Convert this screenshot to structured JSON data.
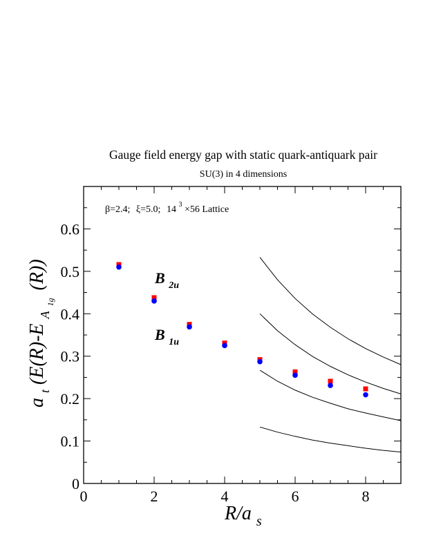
{
  "chart_data": {
    "type": "scatter",
    "title": "Gauge field energy gap with static quark-antiquark pair",
    "subtitle": "SU(3) in 4 dimensions",
    "annotation": {
      "beta": "β=2.4;",
      "xi": "ξ=5.0;",
      "lattice_base": "14",
      "lattice_exp": "3",
      "lattice_rest": "×56 Lattice"
    },
    "xlabel": {
      "main": "R/a",
      "sub": "s"
    },
    "ylabel": {
      "main": "a",
      "sub_t": "t",
      "mid": "(E(R)-E",
      "sub_A": "A",
      "sub_1g": "1g",
      "end": "(R))"
    },
    "xlim": [
      0,
      9
    ],
    "ylim": [
      0,
      0.7
    ],
    "x_ticks": [
      0,
      2,
      4,
      6,
      8
    ],
    "x_tick_labels": [
      "0",
      "2",
      "4",
      "6",
      "8"
    ],
    "y_ticks": [
      0,
      0.1,
      0.2,
      0.3,
      0.4,
      0.5,
      0.6
    ],
    "y_tick_labels": [
      "0",
      "0.1",
      "0.2",
      "0.3",
      "0.4",
      "0.5",
      "0.6"
    ],
    "grid": false,
    "series": [
      {
        "name": "B",
        "name_sub": "2u",
        "color": "#ff0000",
        "marker": "square",
        "x": [
          1,
          2,
          3,
          4,
          5,
          6,
          7,
          8
        ],
        "y": [
          0.516,
          0.438,
          0.375,
          0.331,
          0.292,
          0.263,
          0.241,
          0.223
        ]
      },
      {
        "name": "B",
        "name_sub": "1u",
        "color": "#0000ff",
        "marker": "circle",
        "x": [
          1,
          2,
          3,
          4,
          5,
          6,
          7,
          8
        ],
        "y": [
          0.51,
          0.43,
          0.369,
          0.325,
          0.287,
          0.255,
          0.231,
          0.209
        ]
      }
    ],
    "curves": [
      {
        "x": [
          5,
          5.5,
          6,
          6.5,
          7,
          7.5,
          8,
          8.5,
          9
        ],
        "y": [
          0.533,
          0.48,
          0.436,
          0.399,
          0.368,
          0.341,
          0.318,
          0.298,
          0.28
        ]
      },
      {
        "x": [
          5,
          5.5,
          6,
          6.5,
          7,
          7.5,
          8,
          8.5,
          9
        ],
        "y": [
          0.4,
          0.36,
          0.327,
          0.299,
          0.276,
          0.256,
          0.239,
          0.224,
          0.211
        ]
      },
      {
        "x": [
          5,
          5.5,
          6,
          6.5,
          7,
          7.5,
          8,
          8.5,
          9
        ],
        "y": [
          0.267,
          0.241,
          0.22,
          0.203,
          0.189,
          0.176,
          0.166,
          0.157,
          0.148
        ]
      },
      {
        "x": [
          5,
          5.5,
          6,
          6.5,
          7,
          7.5,
          8,
          8.5,
          9
        ],
        "y": [
          0.133,
          0.121,
          0.111,
          0.102,
          0.095,
          0.089,
          0.083,
          0.078,
          0.074
        ]
      }
    ]
  }
}
